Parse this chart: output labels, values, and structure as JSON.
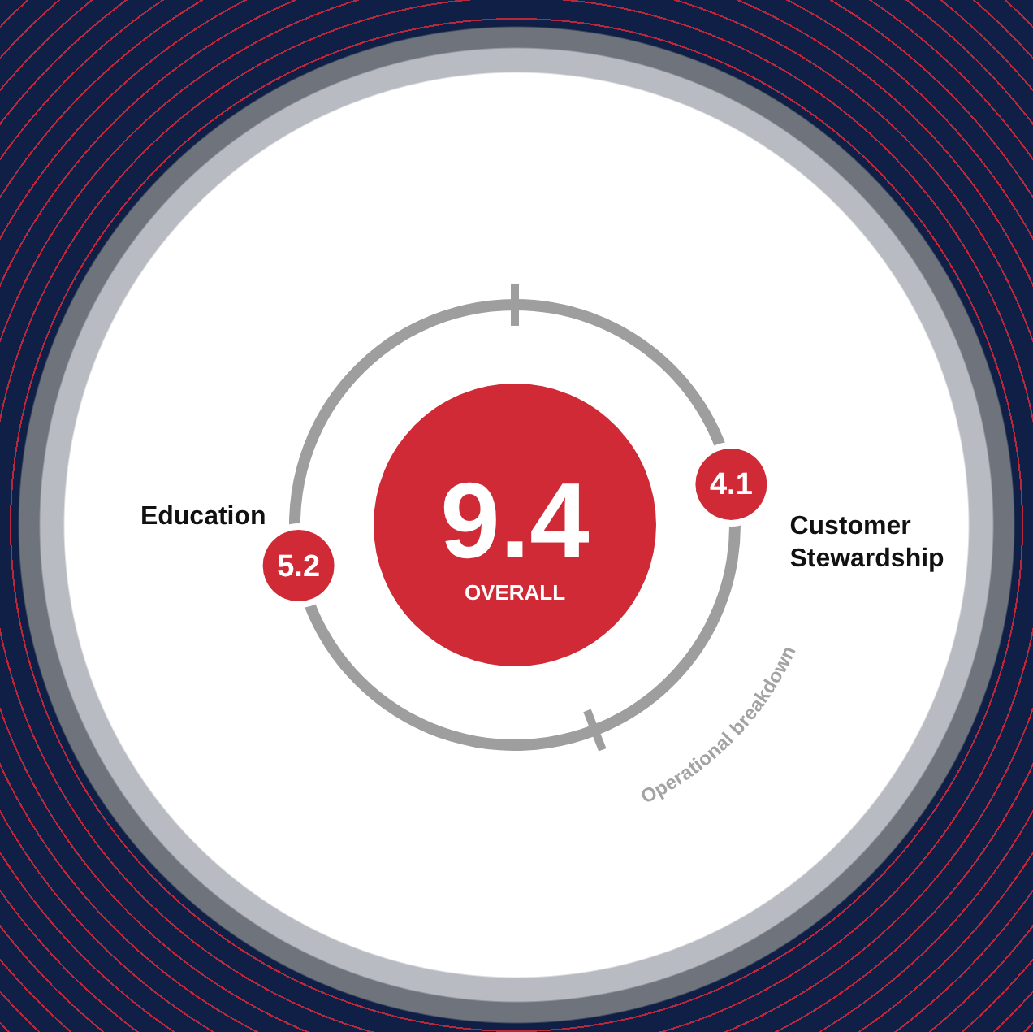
{
  "chart_data": {
    "type": "donut",
    "categories": [
      "Education",
      "Customer Stewardship"
    ],
    "values": [
      5.2,
      4.1
    ],
    "colors": [
      "#9e9e9e",
      "#9e9e9e"
    ],
    "annotations": [
      "9.4",
      "OVERALL",
      "Operational breakdown"
    ],
    "data_labels": true,
    "legend": false
  }
}
